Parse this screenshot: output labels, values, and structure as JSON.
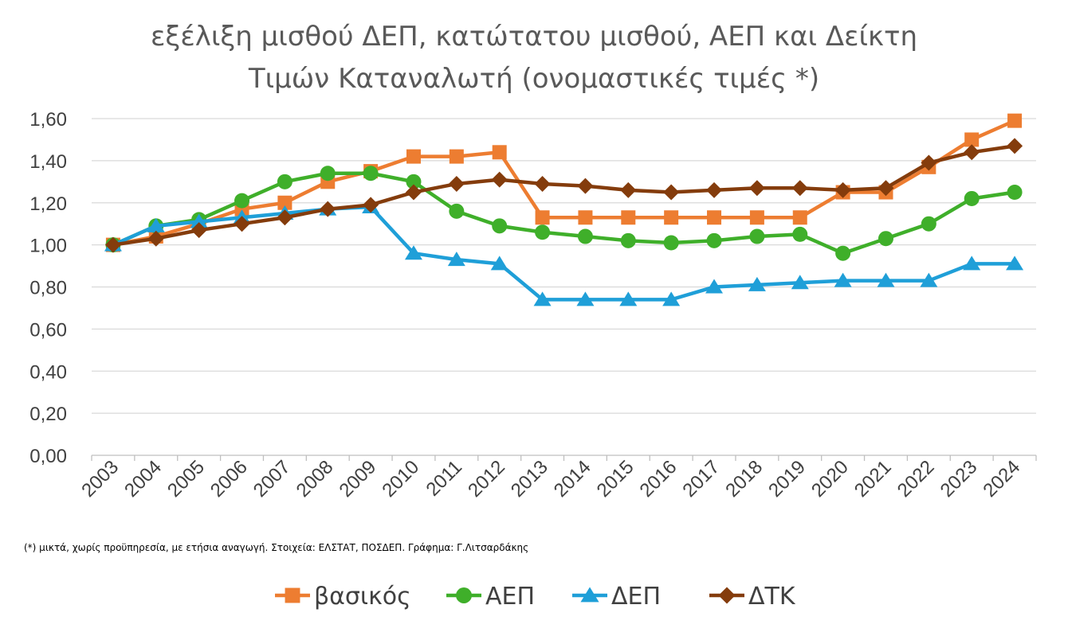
{
  "chart_data": {
    "type": "line",
    "title_lines": [
      "εξέλιξη μισθού ΔΕΠ, κατώτατου μισθού, ΑΕΠ και Δείκτη",
      "Τιμών Καταναλωτή (ονομαστικές τιμές *)"
    ],
    "xlabel": "",
    "ylabel": "",
    "ylim": [
      0,
      1.6
    ],
    "yticks": [
      "0,00",
      "0,20",
      "0,40",
      "0,60",
      "0,80",
      "1,00",
      "1,20",
      "1,40",
      "1,60"
    ],
    "ytick_values": [
      0,
      0.2,
      0.4,
      0.6,
      0.8,
      1.0,
      1.2,
      1.4,
      1.6
    ],
    "categories": [
      "2003",
      "2004",
      "2005",
      "2006",
      "2007",
      "2008",
      "2009",
      "2010",
      "2011",
      "2012",
      "2013",
      "2014",
      "2015",
      "2016",
      "2017",
      "2018",
      "2019",
      "2020",
      "2021",
      "2022",
      "2023",
      "2024"
    ],
    "grid": "horizontal",
    "legend_position": "bottom",
    "series": [
      {
        "name": "βασικός",
        "color": "#ED7D31",
        "marker": "square",
        "values": [
          1.0,
          1.04,
          1.1,
          1.17,
          1.2,
          1.3,
          1.35,
          1.42,
          1.42,
          1.44,
          1.13,
          1.13,
          1.13,
          1.13,
          1.13,
          1.13,
          1.13,
          1.25,
          1.25,
          1.37,
          1.5,
          1.59
        ]
      },
      {
        "name": "ΑΕΠ",
        "color": "#3FAF2A",
        "marker": "circle",
        "values": [
          1.0,
          1.09,
          1.12,
          1.21,
          1.3,
          1.34,
          1.34,
          1.3,
          1.16,
          1.09,
          1.06,
          1.04,
          1.02,
          1.01,
          1.02,
          1.04,
          1.05,
          0.96,
          1.03,
          1.1,
          1.22,
          1.25
        ]
      },
      {
        "name": "ΔΕΠ",
        "color": "#1F9FD8",
        "marker": "triangle",
        "values": [
          1.0,
          1.09,
          1.11,
          1.13,
          1.15,
          1.17,
          1.18,
          0.96,
          0.93,
          0.91,
          0.74,
          0.74,
          0.74,
          0.74,
          0.8,
          0.81,
          0.82,
          0.83,
          0.83,
          0.83,
          0.91,
          0.91
        ]
      },
      {
        "name": "ΔΤΚ",
        "color": "#843C0C",
        "marker": "diamond",
        "values": [
          1.0,
          1.03,
          1.07,
          1.1,
          1.13,
          1.17,
          1.19,
          1.25,
          1.29,
          1.31,
          1.29,
          1.28,
          1.26,
          1.25,
          1.26,
          1.27,
          1.27,
          1.26,
          1.27,
          1.39,
          1.44,
          1.47
        ]
      }
    ],
    "footnote": "(*) μικτά, χωρίς προϋπηρεσία, με ετήσια αναγωγή. Στοιχεία: ΕΛΣΤΑΤ, ΠΟΣΔΕΠ. Γράφημα: Γ.Λιτσαρδάκης"
  }
}
